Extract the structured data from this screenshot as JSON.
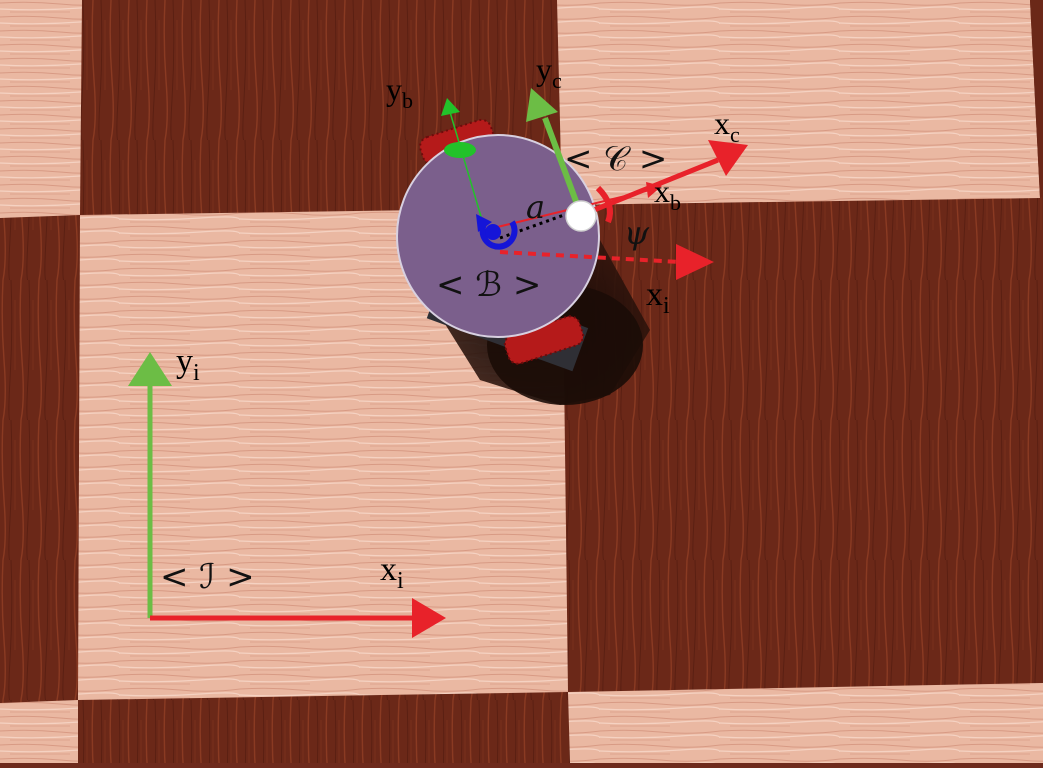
{
  "scene": {
    "title": "",
    "colors": {
      "light_wood": "#eab8a2",
      "dark_wood": "#6b2818",
      "x_axis": "#e8222a",
      "y_axis": "#6cbd45",
      "robot_body": "#7b5f8c",
      "wheel": "#b51a1a",
      "yaw_marker": "#1515d8",
      "camera_point": "#ffffff"
    },
    "icons": [
      "inertial-frame-axes",
      "robot-body-frame-axes",
      "camera-frame-axes",
      "yaw-rotation-icon"
    ]
  },
  "labels": {
    "inertial_frame": "< ℐ >",
    "body_frame": "< ℬ >",
    "camera_frame": "< 𝒞 >",
    "xi_base": "x",
    "xi_sub": "i",
    "yi_base": "y",
    "yi_sub": "i",
    "xb_base": "x",
    "xb_sub": "b",
    "yb_base": "y",
    "yb_sub": "b",
    "xc_base": "x",
    "xc_sub": "c",
    "yc_base": "y",
    "yc_sub": "c",
    "offset": "a",
    "yaw": "ψ"
  }
}
